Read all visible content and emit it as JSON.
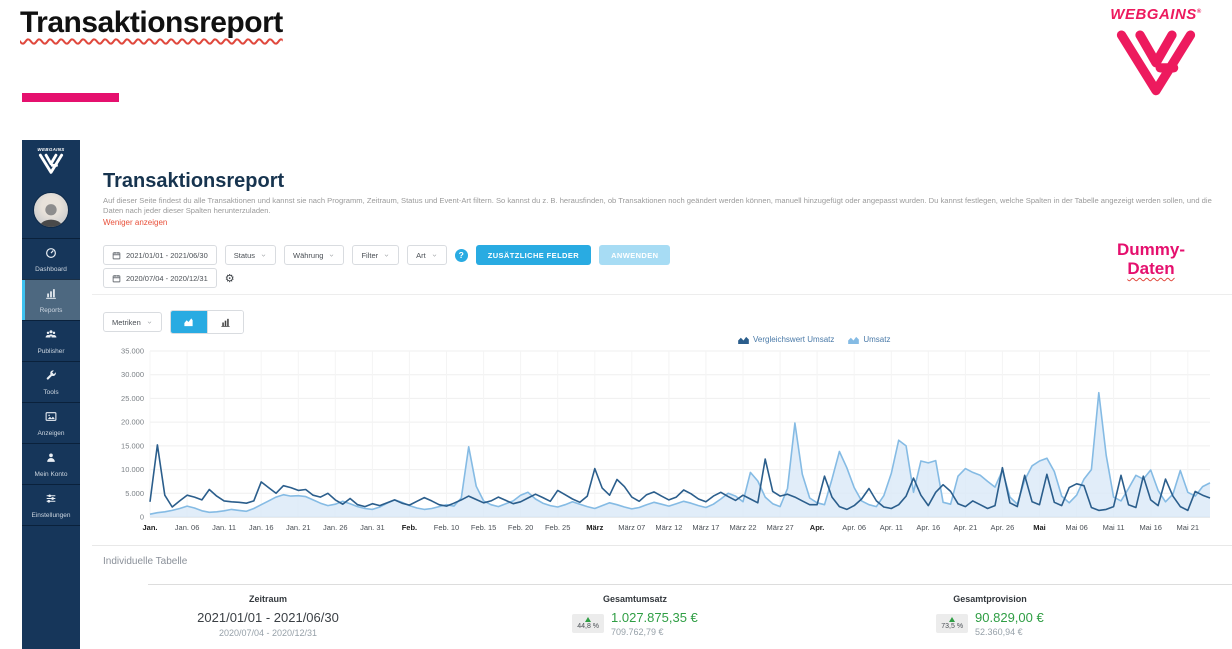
{
  "slide": {
    "title": "Transaktionsreport",
    "watermark_line1": "Dummy-",
    "watermark_line2": "Daten"
  },
  "brand": {
    "name": "WEBGAINS",
    "registered_mark": "®"
  },
  "sidebar": {
    "brand": "WEBGAINS",
    "items": [
      {
        "id": "dashboard",
        "label": "Dashboard",
        "icon": "gauge-icon",
        "active": false
      },
      {
        "id": "reports",
        "label": "Reports",
        "icon": "bar-chart-icon",
        "active": true
      },
      {
        "id": "publisher",
        "label": "Publisher",
        "icon": "users-icon",
        "active": false
      },
      {
        "id": "tools",
        "label": "Tools",
        "icon": "wrench-icon",
        "active": false
      },
      {
        "id": "anzeigen",
        "label": "Anzeigen",
        "icon": "image-icon",
        "active": false
      },
      {
        "id": "mein-konto",
        "label": "Mein Konto",
        "icon": "user-icon",
        "active": false
      },
      {
        "id": "einstellungen",
        "label": "Einstellungen",
        "icon": "sliders-icon",
        "active": false
      }
    ]
  },
  "report": {
    "title": "Transaktionsreport",
    "description": "Auf dieser Seite findest du alle Transaktionen und kannst sie nach Programm, Zeitraum, Status und Event-Art filtern. So kannst du z. B. herausfinden, ob Transaktionen noch geändert werden können, manuell hinzugefügt oder angepasst wurden. Du kannst festlegen, welche Spalten in der Tabelle angezeigt werden sollen, und die Daten nach jeder dieser Spalten herunterzuladen.",
    "show_less_label": "Weniger anzeigen"
  },
  "filters": {
    "date_range_primary": "2021/01/01 - 2021/06/30",
    "date_range_comparison": "2020/07/04 - 2020/12/31",
    "dropdowns": [
      {
        "label": "Status"
      },
      {
        "label": "Währung"
      },
      {
        "label": "Filter"
      },
      {
        "label": "Art"
      }
    ],
    "help_label": "?",
    "gear_icon_glyph": "⚙",
    "additional_fields_button": "ZUSÄTZLICHE FELDER",
    "apply_button": "ANWENDEN"
  },
  "chart_controls": {
    "metrics_label": "Metriken"
  },
  "chart_data": {
    "type": "area",
    "title": "",
    "xlabel": "",
    "ylabel": "",
    "ylim": [
      0,
      35000
    ],
    "grid": true,
    "legend_position": "top-center-right",
    "y_tick_labels": [
      "0",
      "5.000",
      "10.000",
      "15.000",
      "20.000",
      "25.000",
      "30.000",
      "35.000"
    ],
    "x_tick_interval_days": 5,
    "x_tick_labels": [
      "Jan.",
      "Jan. 06",
      "Jan. 11",
      "Jan. 16",
      "Jan. 21",
      "Jan. 26",
      "Jan. 31",
      "Feb.",
      "Feb. 10",
      "Feb. 15",
      "Feb. 20",
      "Feb. 25",
      "März",
      "März 07",
      "März 12",
      "März 17",
      "März 22",
      "März 27",
      "Apr.",
      "Apr. 06",
      "Apr. 11",
      "Apr. 16",
      "Apr. 21",
      "Apr. 26",
      "Mai",
      "Mai 06",
      "Mai 11",
      "Mai 16",
      "Mai 21"
    ],
    "series": [
      {
        "name": "Vergleichswert Umsatz",
        "style": "line",
        "color": "#2b5e8c",
        "values": [
          3200,
          15200,
          4600,
          2100,
          3400,
          4600,
          4200,
          3600,
          5800,
          4400,
          3400,
          3200,
          3100,
          2900,
          3400,
          7400,
          6200,
          5000,
          6600,
          6200,
          5600,
          5800,
          4600,
          4200,
          5000,
          3600,
          2700,
          3900,
          2600,
          2200,
          2800,
          2400,
          3000,
          3600,
          2900,
          2500,
          3300,
          4100,
          3400,
          2600,
          2300,
          2900,
          3600,
          4400,
          3700,
          3000,
          3400,
          4200,
          3500,
          2800,
          3200,
          4000,
          4800,
          4100,
          3300,
          5600,
          4700,
          3800,
          3100,
          4400,
          10200,
          6100,
          4600,
          7900,
          6400,
          4200,
          3300,
          4700,
          5300,
          4400,
          3600,
          4200,
          5700,
          4900,
          3800,
          3200,
          4400,
          5200,
          4300,
          3500,
          4600,
          3800,
          3000,
          12200,
          5400,
          4400,
          4800,
          4200,
          3400,
          2600,
          2600,
          8600,
          4200,
          2200,
          1600,
          2400,
          3800,
          6000,
          3400,
          2100,
          1800,
          2600,
          4400,
          8200,
          4600,
          2400,
          5200,
          6800,
          5400,
          2800,
          2200,
          3400,
          2600,
          1800,
          2400,
          10400,
          3000,
          2200,
          8800,
          3200,
          2600,
          9000,
          3100,
          2400,
          6200,
          7000,
          6600,
          2000,
          1400,
          1600,
          2200,
          8800,
          2600,
          2000,
          8600,
          3600,
          2400,
          8000,
          4400,
          2200,
          1400,
          5400,
          4600,
          4000
        ]
      },
      {
        "name": "Umsatz",
        "style": "area",
        "color": "#85bbe4",
        "fill": "#d9e9f7",
        "values": [
          600,
          900,
          1100,
          1400,
          1800,
          2300,
          1900,
          1300,
          1000,
          1100,
          1300,
          1600,
          1400,
          1200,
          1800,
          2600,
          3400,
          4200,
          4700,
          4400,
          4500,
          4300,
          3600,
          2900,
          2400,
          2700,
          3300,
          2800,
          2200,
          1800,
          1600,
          2100,
          2900,
          3600,
          3100,
          2400,
          1900,
          1600,
          1800,
          2200,
          2600,
          2300,
          4000,
          14800,
          6500,
          3400,
          2600,
          2200,
          2800,
          3400,
          4600,
          5200,
          3800,
          2900,
          2400,
          2100,
          2600,
          3200,
          2700,
          2200,
          1800,
          2400,
          3000,
          2600,
          2100,
          1700,
          2000,
          2600,
          3100,
          2700,
          2300,
          2800,
          3300,
          2900,
          2400,
          2000,
          2700,
          3800,
          5000,
          4400,
          3200,
          9400,
          7600,
          4200,
          2800,
          2200,
          6000,
          19800,
          9000,
          4000,
          3000,
          2600,
          8000,
          13800,
          10400,
          6200,
          3400,
          2600,
          2200,
          4500,
          9200,
          16200,
          15000,
          5200,
          11800,
          11400,
          11900,
          3100,
          2700,
          8600,
          10200,
          9400,
          8800,
          7500,
          6300,
          9800,
          4200,
          2700,
          7800,
          10800,
          11800,
          12400,
          9600,
          4400,
          3000,
          4600,
          8000,
          10000,
          26200,
          13000,
          4200,
          3400,
          6000,
          8800,
          8000,
          9900,
          5600,
          3200,
          4800,
          9800,
          5200,
          4400,
          6400,
          7200
        ]
      }
    ]
  },
  "summary": {
    "section_title": "Individuelle Tabelle",
    "columns": [
      {
        "label": "Zeitraum",
        "value": "2021/01/01 - 2021/06/30",
        "comparison": "2020/07/04 - 2020/12/31"
      },
      {
        "label": "Gesamtumsatz",
        "change": "44,8 %",
        "value": "1.027.875,35 €",
        "comparison": "709.762,79 €"
      },
      {
        "label": "Gesamtprovision",
        "change": "73,5 %",
        "value": "90.829,00 €",
        "comparison": "52.360,94 €"
      }
    ]
  },
  "colors": {
    "accent_pink": "#e5106e",
    "brand_pink": "#ed1a5e",
    "primary_blue": "#29abe2",
    "disabled_blue": "#a7dcf4",
    "sidebar_navy": "#16365a",
    "dark_series": "#2b5e8c",
    "light_series": "#85bbe4",
    "light_series_fill": "#d9e9f7",
    "positive_green": "#2f9e44",
    "link_red": "#e8503a",
    "squiggle_red": "#e0483d"
  }
}
